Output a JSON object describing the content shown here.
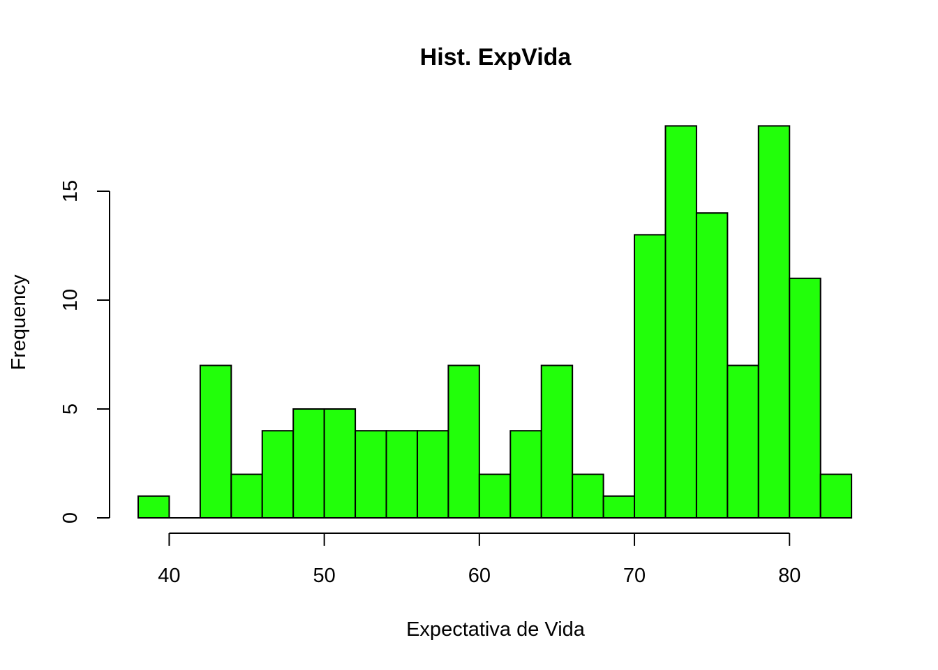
{
  "chart_data": {
    "type": "bar",
    "title": "Hist. ExpVida",
    "xlabel": "Expectativa de Vida",
    "ylabel": "Frequency",
    "bar_color": "#22ff0a",
    "bins": [
      {
        "start": 38,
        "end": 40,
        "count": 1
      },
      {
        "start": 40,
        "end": 42,
        "count": 0
      },
      {
        "start": 42,
        "end": 44,
        "count": 7
      },
      {
        "start": 44,
        "end": 46,
        "count": 2
      },
      {
        "start": 46,
        "end": 48,
        "count": 4
      },
      {
        "start": 48,
        "end": 50,
        "count": 5
      },
      {
        "start": 50,
        "end": 52,
        "count": 5
      },
      {
        "start": 52,
        "end": 54,
        "count": 4
      },
      {
        "start": 54,
        "end": 56,
        "count": 4
      },
      {
        "start": 56,
        "end": 58,
        "count": 4
      },
      {
        "start": 58,
        "end": 60,
        "count": 7
      },
      {
        "start": 60,
        "end": 62,
        "count": 2
      },
      {
        "start": 62,
        "end": 64,
        "count": 4
      },
      {
        "start": 64,
        "end": 66,
        "count": 7
      },
      {
        "start": 66,
        "end": 68,
        "count": 2
      },
      {
        "start": 68,
        "end": 70,
        "count": 1
      },
      {
        "start": 70,
        "end": 72,
        "count": 13
      },
      {
        "start": 72,
        "end": 74,
        "count": 18
      },
      {
        "start": 74,
        "end": 76,
        "count": 14
      },
      {
        "start": 76,
        "end": 78,
        "count": 7
      },
      {
        "start": 78,
        "end": 80,
        "count": 18
      },
      {
        "start": 80,
        "end": 82,
        "count": 11
      },
      {
        "start": 82,
        "end": 84,
        "count": 2
      }
    ],
    "xticks": [
      40,
      50,
      60,
      70,
      80
    ],
    "yticks": [
      0,
      5,
      10,
      15
    ],
    "xlim": [
      38,
      84
    ],
    "ylim": [
      0,
      18
    ],
    "grid": false,
    "legend": "none"
  }
}
